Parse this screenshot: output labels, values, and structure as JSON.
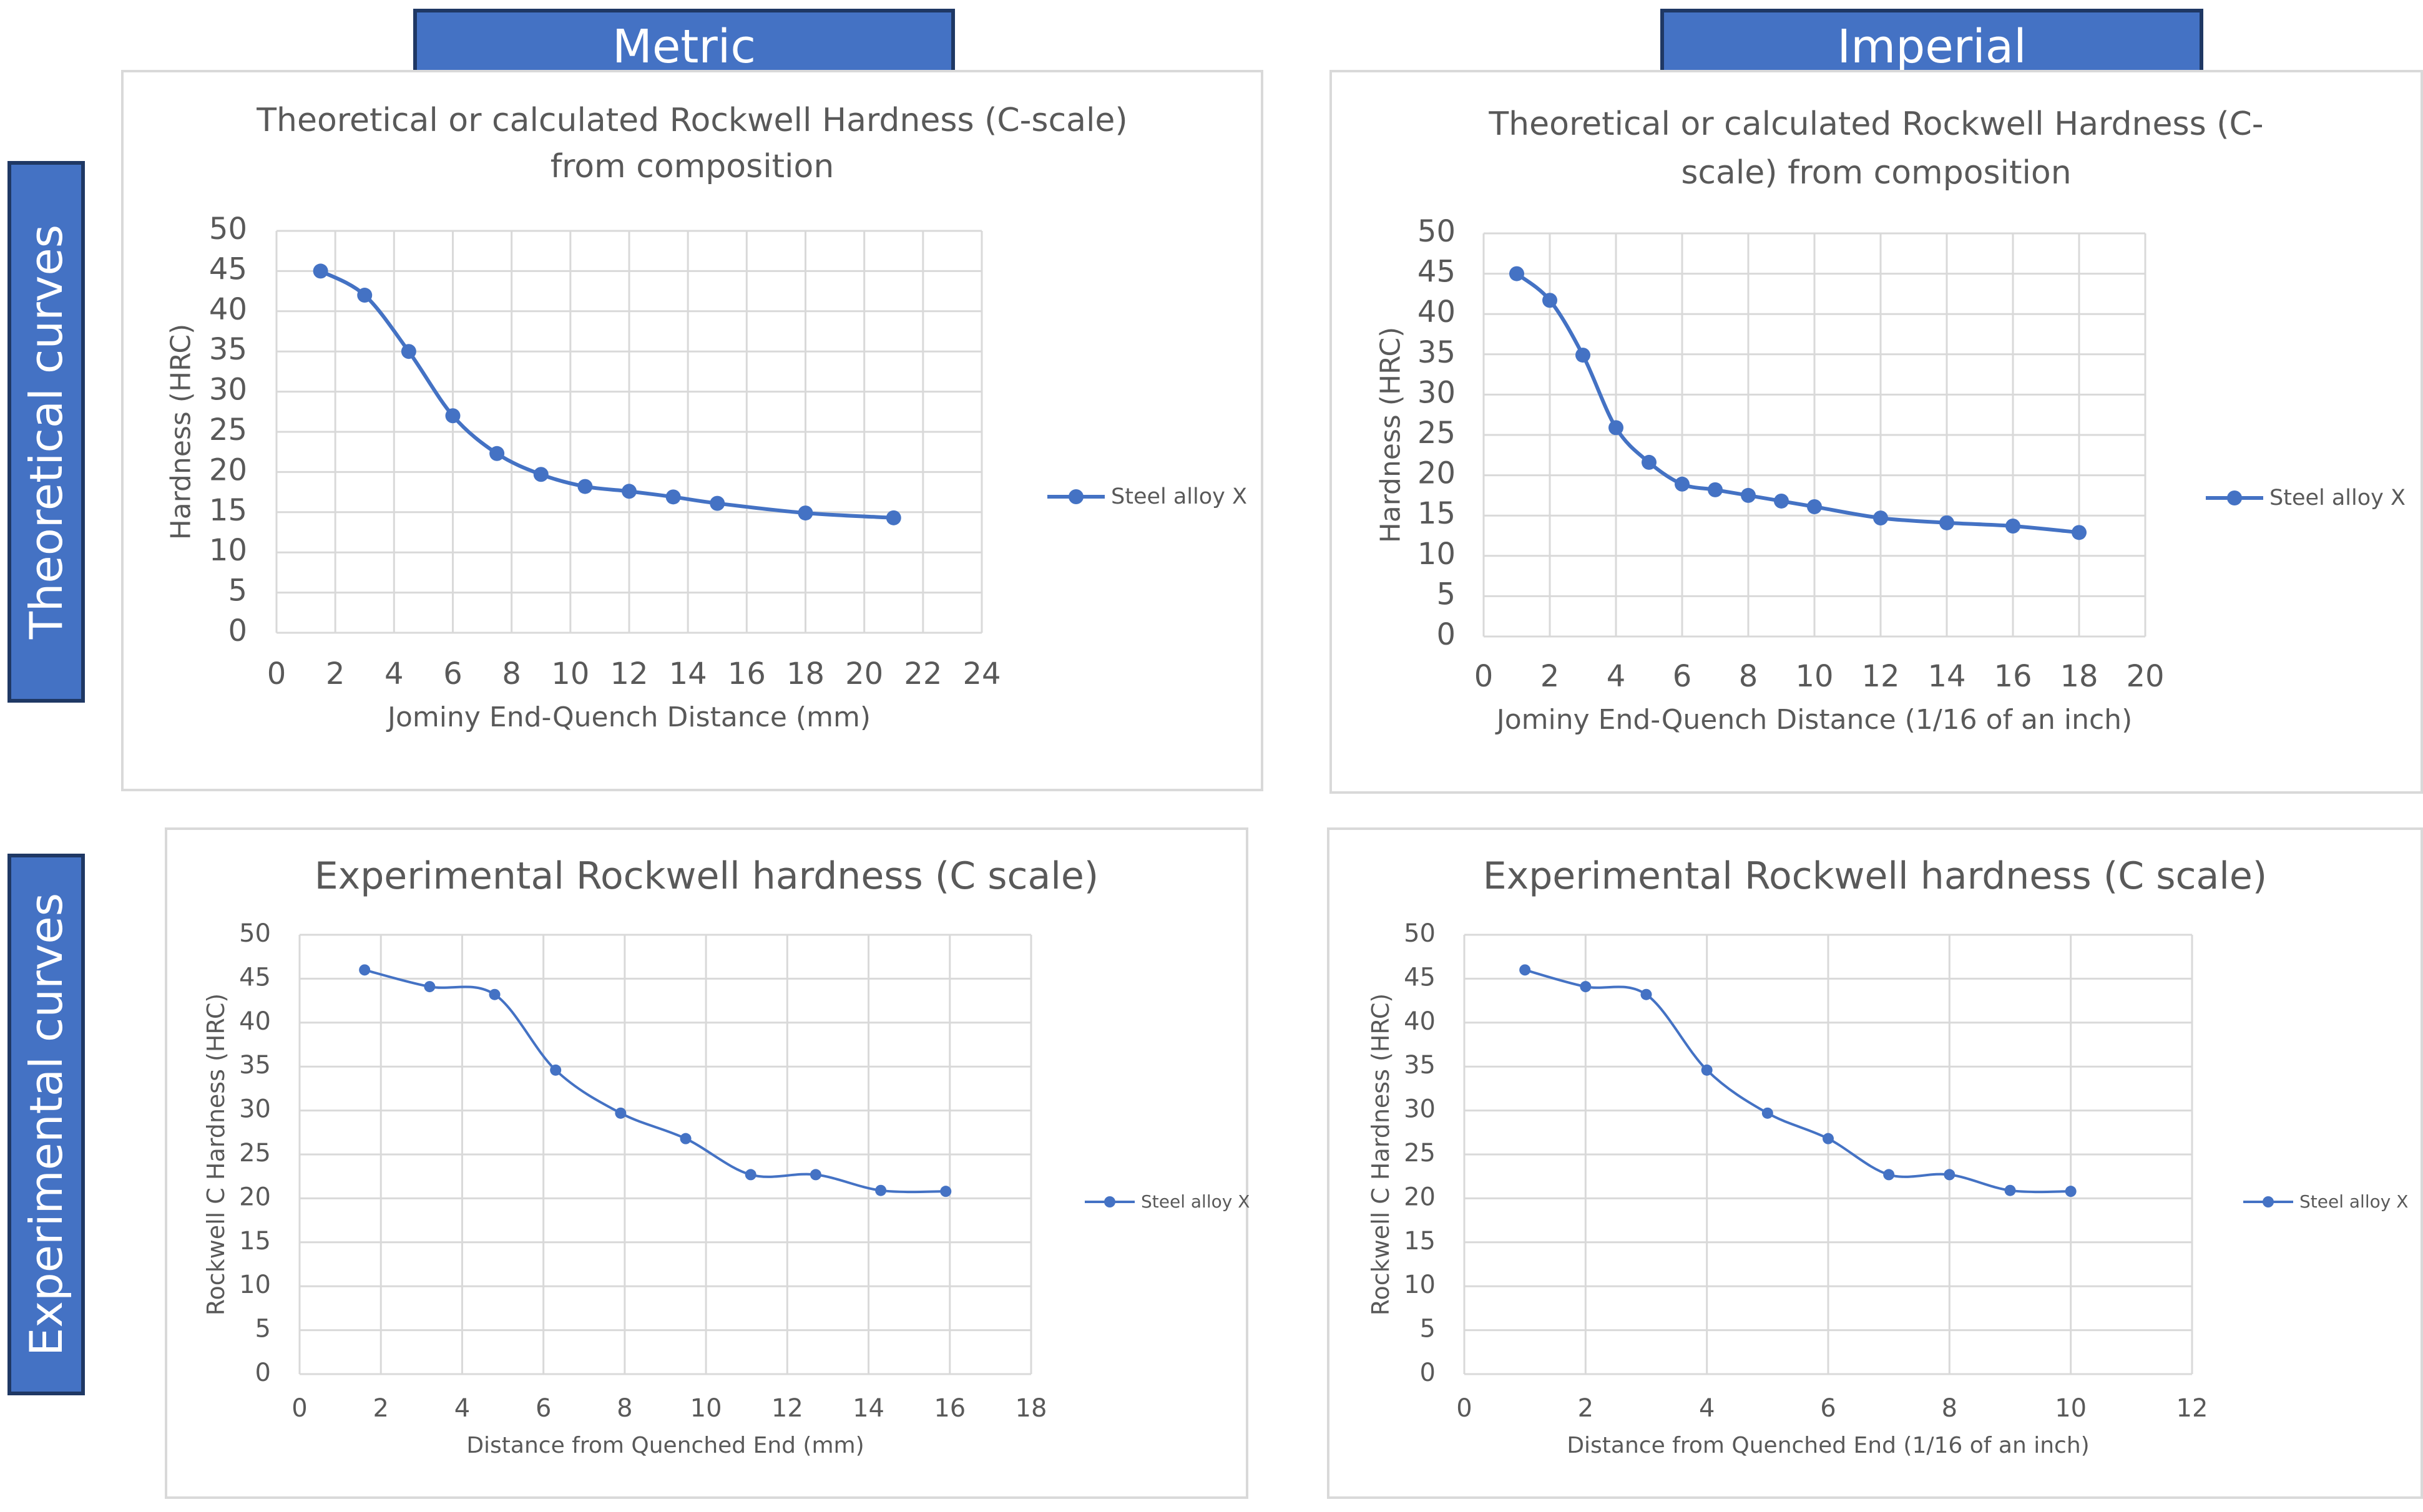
{
  "headers": {
    "metric": "Metric",
    "imperial": "Imperial",
    "theoretical": "Theoretical curves",
    "experimental": "Experimental curves"
  },
  "colors": {
    "accent": "#4472c4",
    "header_border": "#1f3864",
    "grid": "#d9d9d9",
    "text": "#595959"
  },
  "chart_data": [
    {
      "type": "line",
      "title": "Theoretical or calculated Rockwell Hardness (C-scale) from composition",
      "title_lines": [
        "Theoretical or calculated Rockwell Hardness (C-scale)",
        "from composition"
      ],
      "xlabel": "Jominy End-Quench Distance (mm)",
      "ylabel": "Hardness (HRC)",
      "xlim": [
        0,
        24
      ],
      "xstep": 2,
      "ylim": [
        0,
        50
      ],
      "ystep": 5,
      "grid": true,
      "legend": "right",
      "smooth": true,
      "markers": true,
      "series": [
        {
          "name": "Steel alloy X",
          "x": [
            1.5,
            3,
            4.5,
            6,
            7.5,
            9,
            10.5,
            12,
            13.5,
            15,
            18,
            21
          ],
          "values": [
            45,
            42,
            35,
            27,
            22.3,
            19.7,
            18.2,
            17.6,
            16.9,
            16.1,
            14.9,
            14.3
          ]
        }
      ]
    },
    {
      "type": "line",
      "title": "Theoretical or calculated Rockwell Hardness (C-scale) from composition",
      "title_lines": [
        "Theoretical or calculated Rockwell Hardness (C-",
        "scale) from composition"
      ],
      "xlabel": "Jominy End-Quench Distance (1/16 of an inch)",
      "ylabel": "Hardness (HRC)",
      "xlim": [
        0,
        20
      ],
      "xstep": 2,
      "ylim": [
        0,
        50
      ],
      "ystep": 5,
      "grid": true,
      "legend": "right",
      "smooth": true,
      "markers": true,
      "series": [
        {
          "name": "Steel alloy X",
          "x": [
            1,
            2,
            3,
            4,
            5,
            6,
            7,
            8,
            9,
            10,
            12,
            14,
            16,
            18
          ],
          "values": [
            45,
            41.7,
            34.9,
            25.9,
            21.6,
            18.9,
            18.2,
            17.5,
            16.8,
            16.1,
            14.7,
            14.1,
            13.7,
            12.9
          ]
        }
      ]
    },
    {
      "type": "line",
      "title": "Experimental Rockwell hardness (C scale)",
      "title_lines": [
        "Experimental Rockwell hardness (C scale)"
      ],
      "xlabel": "Distance from Quenched End (mm)",
      "ylabel": "Rockwell C Hardness  (HRC)",
      "xlim": [
        0,
        18
      ],
      "xstep": 2,
      "ylim": [
        0,
        50
      ],
      "ystep": 5,
      "grid": true,
      "legend": "right",
      "smooth": true,
      "markers": true,
      "series": [
        {
          "name": "Steel alloy X",
          "x": [
            1.6,
            3.2,
            4.8,
            6.3,
            7.9,
            9.5,
            11.1,
            12.7,
            14.3,
            15.9
          ],
          "values": [
            46,
            44.1,
            43.2,
            34.6,
            29.7,
            26.8,
            22.7,
            22.7,
            20.9,
            20.8
          ]
        }
      ]
    },
    {
      "type": "line",
      "title": "Experimental Rockwell hardness (C scale)",
      "title_lines": [
        "Experimental Rockwell hardness (C scale)"
      ],
      "xlabel": "Distance from Quenched End (1/16 of an inch)",
      "ylabel": "Rockwell C Hardness  (HRC)",
      "xlim": [
        0,
        12
      ],
      "xstep": 2,
      "ylim": [
        0,
        50
      ],
      "ystep": 5,
      "grid": true,
      "legend": "right",
      "smooth": true,
      "markers": true,
      "series": [
        {
          "name": "Steel alloy X",
          "x": [
            1,
            2,
            3,
            4,
            5,
            6,
            7,
            8,
            9,
            10
          ],
          "values": [
            46,
            44.1,
            43.2,
            34.6,
            29.7,
            26.8,
            22.7,
            22.7,
            20.9,
            20.8
          ]
        }
      ]
    }
  ]
}
